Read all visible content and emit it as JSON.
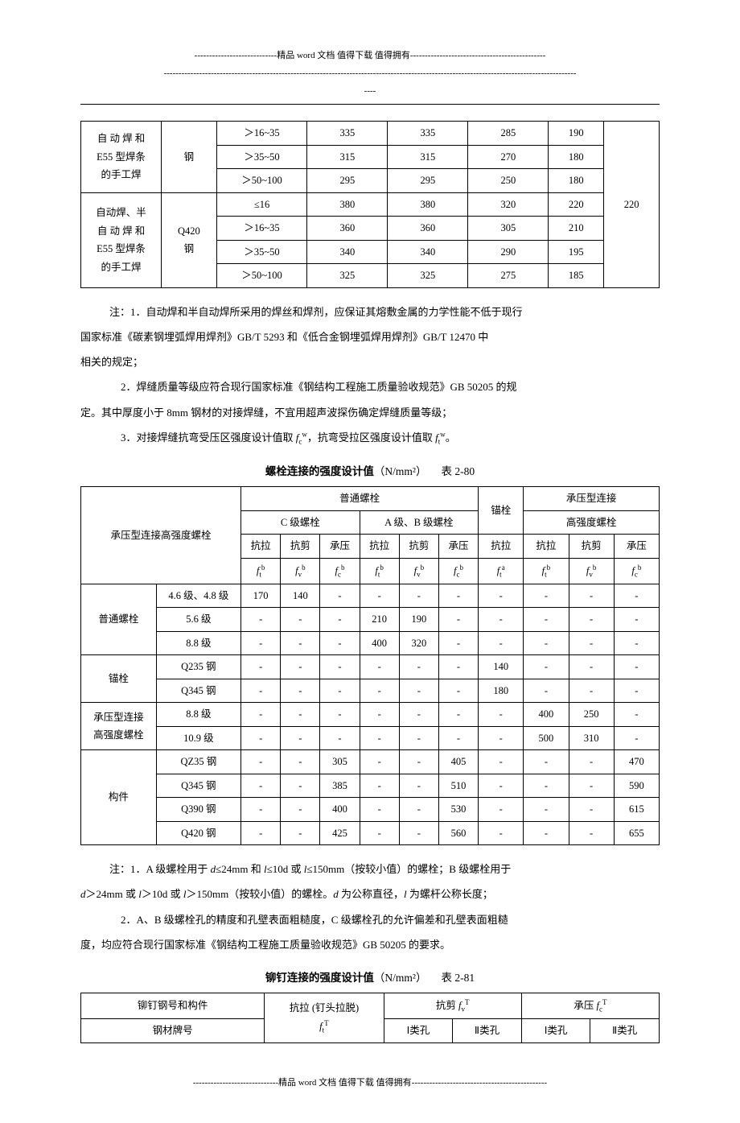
{
  "header": {
    "line1": "----------------------------精品 word 文档  值得下载  值得拥有----------------------------------------------",
    "line2": "--------------------------------------------------------------------------------------------------------------------------------------------",
    "line3": "----"
  },
  "table1": {
    "rows": [
      {
        "c1": "自 动 焊 和",
        "c2": "钢",
        "c3": "＞16~35",
        "c4": "335",
        "c5": "335",
        "c6": "285",
        "c7": "190",
        "c8": ""
      },
      {
        "c1": "E55 型焊条",
        "c2": "",
        "c3": "＞35~50",
        "c4": "315",
        "c5": "315",
        "c6": "270",
        "c7": "180",
        "c8": ""
      },
      {
        "c1": "的手工焊",
        "c2": "",
        "c3": "＞50~100",
        "c4": "295",
        "c5": "295",
        "c6": "250",
        "c7": "180",
        "c8": ""
      },
      {
        "c1": "自动焊、半",
        "c2": "",
        "c3": "≤16",
        "c4": "380",
        "c5": "380",
        "c6": "320",
        "c7": "220",
        "c8": ""
      },
      {
        "c1": "自 动 焊 和",
        "c2": "Q420",
        "c3": "＞16~35",
        "c4": "360",
        "c5": "360",
        "c6": "305",
        "c7": "210",
        "c8": "220"
      },
      {
        "c1": "E55 型焊条",
        "c2": "钢",
        "c3": "＞35~50",
        "c4": "340",
        "c5": "340",
        "c6": "290",
        "c7": "195",
        "c8": ""
      },
      {
        "c1": "的手工焊",
        "c2": "",
        "c3": "＞50~100",
        "c4": "325",
        "c5": "325",
        "c6": "275",
        "c7": "185",
        "c8": ""
      }
    ]
  },
  "notes1": {
    "lead": "注：1．自动焊和半自动焊所采用的焊丝和焊剂，应保证其熔敷金属的力学性能不低于现行",
    "line2": "国家标准《碳素钢埋弧焊用焊剂》GB/T 5293 和《低合金钢埋弧焊用焊剂》GB/T 12470 中",
    "line3": "相关的规定；",
    "item2a": "2．焊缝质量等级应符合现行国家标准《钢结构工程施工质量验收规范》GB 50205 的规",
    "item2b": "定。其中厚度小于 8mm 钢材的对接焊缝，不宜用超声波探伤确定焊缝质量等级；",
    "item3": "3．对接焊缝抗弯受压区强度设计值取 "
  },
  "title2": {
    "bold": "螺栓连接的强度设计值",
    "unit": "（N/mm²）",
    "num": "表 2-80"
  },
  "table2": {
    "h_main": "承压型连接高强度螺栓",
    "h_pt": "普通螺栓",
    "h_mao": "锚栓",
    "h_cy": "承压型连接",
    "h_c": "C 级螺栓",
    "h_ab": "A 级、B 级螺栓",
    "h_gq": "高强度螺栓",
    "h_kl": "抗拉",
    "h_kj": "抗剪",
    "h_cy2": "承压",
    "rows": [
      {
        "g": "普通螺栓",
        "s": "4.6 级、4.8 级",
        "v": [
          "170",
          "140",
          "-",
          "-",
          "-",
          "-",
          "-",
          "-",
          "-",
          "-"
        ]
      },
      {
        "g": "",
        "s": "5.6 级",
        "v": [
          "-",
          "-",
          "-",
          "210",
          "190",
          "-",
          "-",
          "-",
          "-",
          "-"
        ]
      },
      {
        "g": "",
        "s": "8.8 级",
        "v": [
          "-",
          "-",
          "-",
          "400",
          "320",
          "-",
          "-",
          "-",
          "-",
          "-"
        ]
      },
      {
        "g": "锚栓",
        "s": "Q235 钢",
        "v": [
          "-",
          "-",
          "-",
          "-",
          "-",
          "-",
          "140",
          "-",
          "-",
          "-"
        ]
      },
      {
        "g": "",
        "s": "Q345 钢",
        "v": [
          "-",
          "-",
          "-",
          "-",
          "-",
          "-",
          "180",
          "-",
          "-",
          "-"
        ]
      },
      {
        "g": "承压型连接",
        "s": "8.8 级",
        "v": [
          "-",
          "-",
          "-",
          "-",
          "-",
          "-",
          "-",
          "400",
          "250",
          "-"
        ]
      },
      {
        "g": "高强度螺栓",
        "s": "10.9 级",
        "v": [
          "-",
          "-",
          "-",
          "-",
          "-",
          "-",
          "-",
          "500",
          "310",
          "-"
        ]
      },
      {
        "g": "构件",
        "s": "QZ35 钢",
        "v": [
          "-",
          "-",
          "305",
          "-",
          "-",
          "405",
          "-",
          "-",
          "-",
          "470"
        ]
      },
      {
        "g": "",
        "s": "Q345 钢",
        "v": [
          "-",
          "-",
          "385",
          "-",
          "-",
          "510",
          "-",
          "-",
          "-",
          "590"
        ]
      },
      {
        "g": "",
        "s": "Q390 钢",
        "v": [
          "-",
          "-",
          "400",
          "-",
          "-",
          "530",
          "-",
          "-",
          "-",
          "615"
        ]
      },
      {
        "g": "",
        "s": "Q420 钢",
        "v": [
          "-",
          "-",
          "425",
          "-",
          "-",
          "560",
          "-",
          "-",
          "-",
          "655"
        ]
      }
    ]
  },
  "notes2": {
    "lead": "注：1．A 级螺栓用于 ",
    "l1b": "≤24mm 和 ",
    "l1c": "≤10d 或 ",
    "l1d": "≤150mm（按较小值）的螺栓；B 级螺栓用于",
    "l2a": "＞24mm 或 ",
    "l2b": "＞10d 或 ",
    "l2c": "＞150mm（按较小值）的螺栓。",
    "l2d": " 为公称直径，",
    "l2e": " 为螺杆公称长度；",
    "item2a": "2．A、B 级螺栓孔的精度和孔壁表面粗糙度，C 级螺栓孔的允许偏差和孔壁表面粗糙",
    "item2b": "度，均应符合现行国家标准《钢结构工程施工质量验收规范》GB 50205 的要求。"
  },
  "title3": {
    "bold": "铆钉连接的强度设计值",
    "unit": "（N/mm²）",
    "num": "表 2-81"
  },
  "table3": {
    "h1": "铆钉钢号和构件",
    "h2": "抗拉 (钉头拉脱)",
    "h3": "抗剪 ",
    "h4": "承压 ",
    "r2a": "钢材牌号",
    "r2c": "Ⅰ类孔",
    "r2d": "Ⅱ类孔",
    "r2e": "Ⅰ类孔",
    "r2f": "Ⅱ类孔"
  },
  "footer": "-----------------------------精品 word 文档  值得下载  值得拥有----------------------------------------------"
}
